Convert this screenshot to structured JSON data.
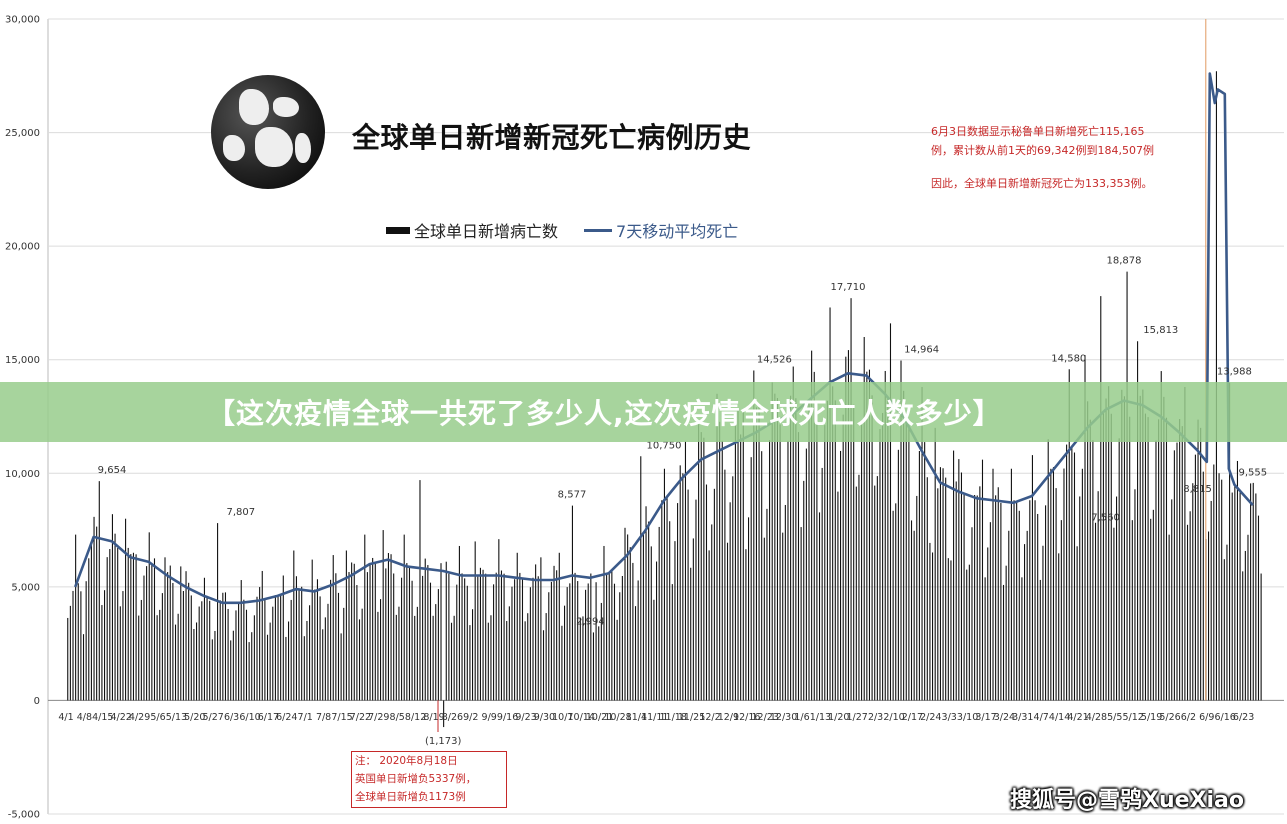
{
  "title": "全球单日新增新冠死亡病例历史",
  "legend": {
    "bars": "全球单日新增病亡数",
    "line": "7天移动平均死亡"
  },
  "colors": {
    "bars": "#111111",
    "line": "#3b5a8a",
    "note": "#c62828",
    "banner": "#98cc8c"
  },
  "note_top": [
    "6月3日数据显示秘鲁单日新增死亡115,165",
    "例，累计数从前1天的69,342例到184,507例",
    "因此，全球单日新增新冠死亡为133,353例。"
  ],
  "note_bottom": [
    "注：  2020年8月18日",
    "英国单日新增负5337例，",
    "全球单日新增负1173例"
  ],
  "banner_text": "【这次疫情全球一共死了多少人,这次疫情全球死亡人数多少】",
  "watermark": "搜狐号@雪鸮XueXiao",
  "chart_data": {
    "type": "bar",
    "title": "全球单日新增新冠死亡病例历史",
    "xlabel": "",
    "ylabel": "",
    "ylim": [
      -5000,
      30000
    ],
    "y_ticks": [
      "30,000",
      "25,000",
      "20,000",
      "15,000",
      "10,000",
      "5,000",
      "0",
      "-5,000"
    ],
    "y_tick_values": [
      30000,
      25000,
      20000,
      15000,
      10000,
      5000,
      0,
      -5000
    ],
    "x_tick_labels": [
      "4/1",
      "4/8",
      "4/15",
      "4/22",
      "4/29",
      "5/6",
      "5/13",
      "5/20",
      "5/27",
      "6/3",
      "6/10",
      "6/17",
      "6/24",
      "7/1",
      "7/8",
      "7/15",
      "7/22",
      "7/29",
      "8/5",
      "8/12",
      "8/19",
      "8/26",
      "9/2",
      "9/9",
      "9/16",
      "9/23",
      "9/30",
      "10/7",
      "10/14",
      "10/21",
      "10/28",
      "11/4",
      "11/11",
      "11/18",
      "11/25",
      "12/2",
      "12/9",
      "12/16",
      "12/23",
      "12/30",
      "1/6",
      "1/13",
      "1/20",
      "1/27",
      "2/3",
      "2/10",
      "2/17",
      "2/24",
      "3/3",
      "3/10",
      "3/17",
      "3/24",
      "3/31",
      "4/7",
      "4/14",
      "4/21",
      "4/28",
      "5/5",
      "5/12",
      "5/19",
      "5/26",
      "6/2",
      "6/9",
      "6/16",
      "6/23"
    ],
    "grid": true,
    "legend_position": "top",
    "annotations": [
      {
        "label": "9,654",
        "week": 2,
        "value": 9654
      },
      {
        "label": "7,807",
        "week": 9,
        "value": 7807
      },
      {
        "label": "(1,173)",
        "week": 20,
        "value": -1173
      },
      {
        "label": "8,577",
        "week": 27,
        "value": 8577
      },
      {
        "label": "2,994",
        "week": 28,
        "value": 2994
      },
      {
        "label": "10,750",
        "week": 32,
        "value": 10750
      },
      {
        "label": "14,526",
        "week": 38,
        "value": 14526
      },
      {
        "label": "17,710",
        "week": 42,
        "value": 17710
      },
      {
        "label": "14,964",
        "week": 46,
        "value": 14964
      },
      {
        "label": "14,580",
        "week": 54,
        "value": 14580
      },
      {
        "label": "7,560",
        "week": 56,
        "value": 7560
      },
      {
        "label": "18,878",
        "week": 57,
        "value": 18878
      },
      {
        "label": "15,813",
        "week": 59,
        "value": 15813
      },
      {
        "label": "8,815",
        "week": 61,
        "value": 8815
      },
      {
        "label": "13,988",
        "week": 63,
        "value": 13988
      },
      {
        "label": "9,555",
        "week": 64,
        "value": 9555
      }
    ],
    "series": [
      {
        "name": "7天移动平均死亡",
        "type": "line",
        "weekly_values": [
          5000,
          7200,
          7000,
          6300,
          6100,
          5500,
          5000,
          4600,
          4300,
          4300,
          4400,
          4600,
          4900,
          4800,
          5100,
          5500,
          6000,
          6200,
          5900,
          5800,
          5700,
          5500,
          5500,
          5500,
          5400,
          5300,
          5300,
          5500,
          5400,
          5600,
          6400,
          7500,
          8800,
          9800,
          10600,
          11000,
          11400,
          11800,
          12300,
          12600,
          13300,
          14000,
          14400,
          14300,
          13500,
          12500,
          11000,
          9600,
          9200,
          8900,
          8800,
          8700,
          9000,
          10000,
          11000,
          12000,
          12800,
          13200,
          13000,
          12500,
          11800,
          11000,
          10200,
          9500,
          8600
        ]
      },
      {
        "name": "全球单日新增病亡数",
        "type": "bar",
        "weekly_avg": [
          5000,
          7200,
          7000,
          6300,
          6100,
          5500,
          5000,
          4600,
          4300,
          4300,
          4400,
          4600,
          4900,
          4800,
          5100,
          5500,
          6000,
          6200,
          5900,
          5800,
          5700,
          5500,
          5500,
          5500,
          5400,
          5300,
          5300,
          5500,
          5400,
          5600,
          6400,
          7500,
          8800,
          9800,
          10600,
          11000,
          11400,
          11800,
          12300,
          12600,
          13300,
          14000,
          14400,
          14300,
          13500,
          12500,
          11000,
          9600,
          9200,
          8900,
          8800,
          8700,
          9000,
          10000,
          11000,
          12000,
          12800,
          13200,
          13000,
          12500,
          11800,
          11000,
          10200,
          9500,
          8600
        ],
        "weekly_peak": [
          7300,
          9654,
          8200,
          8000,
          7400,
          6300,
          5900,
          5400,
          7807,
          5300,
          5700,
          5500,
          6600,
          6200,
          6400,
          6600,
          7300,
          7500,
          7300,
          9700,
          -1173,
          6800,
          7000,
          7100,
          6500,
          6300,
          6500,
          8577,
          2994,
          6800,
          7600,
          10750,
          10200,
          11400,
          12300,
          13500,
          12800,
          14526,
          14000,
          14700,
          15400,
          17300,
          17710,
          16000,
          16600,
          14964,
          13800,
          12000,
          11000,
          10600,
          10200,
          10200,
          10800,
          11500,
          14580,
          15200,
          17800,
          18878,
          15813,
          14500,
          13800,
          12000,
          27700,
          13988,
          9555
        ]
      }
    ]
  }
}
